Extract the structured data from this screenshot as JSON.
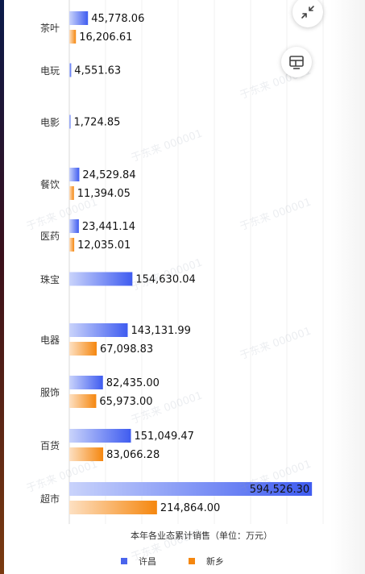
{
  "chart_data": {
    "type": "bar",
    "orientation": "horizontal",
    "xlabel": "本年各业态累计销售（单位：万元）",
    "categories": [
      "茶叶",
      "电玩",
      "电影",
      "餐饮",
      "医药",
      "珠宝",
      "电器",
      "服饰",
      "百货",
      "超市"
    ],
    "series": [
      {
        "name": "许昌",
        "color": "#4a64ec",
        "values": [
          45778.06,
          4551.63,
          1724.85,
          24529.84,
          23441.14,
          154630.04,
          143131.99,
          82435.0,
          151049.47,
          594526.3
        ],
        "labels": [
          "45,778.06",
          "4,551.63",
          "1,724.85",
          "24,529.84",
          "23,441.14",
          "154,630.04",
          "143,131.99",
          "82,435.00",
          "151,049.47",
          "594,526.30"
        ]
      },
      {
        "name": "新乡",
        "color": "#f5870f",
        "values": [
          16206.61,
          null,
          null,
          11394.05,
          12035.01,
          null,
          67098.83,
          65973.0,
          83066.28,
          214864.0
        ],
        "labels": [
          "16,206.61",
          "",
          "",
          "11,394.05",
          "12,035.01",
          "",
          "67,098.83",
          "65,973.00",
          "83,066.28",
          "214,864.00"
        ]
      }
    ],
    "grid": true,
    "legend": "bottom"
  },
  "watermark": "于东来 000001",
  "icons": {
    "collapse": "collapse-icon",
    "screen": "screen-icon"
  }
}
